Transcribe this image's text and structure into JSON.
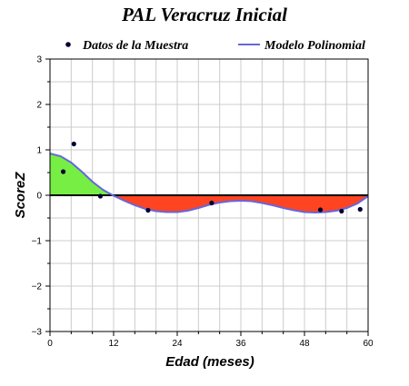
{
  "chart_data": {
    "type": "line",
    "title": "PAL Veracruz Inicial",
    "xlabel": "Edad (meses)",
    "ylabel": "ScoreZ",
    "xlim": [
      0,
      60
    ],
    "ylim": [
      -3,
      3
    ],
    "xticks": [
      0,
      12,
      24,
      36,
      48,
      60
    ],
    "yticks": [
      3,
      2,
      1,
      0,
      -1,
      -2,
      -3
    ],
    "xtick_labels": [
      "0",
      "12",
      "24",
      "36",
      "48",
      "60"
    ],
    "ytick_labels": [
      "3",
      "2",
      "1",
      "0",
      "−1",
      "−2",
      "−3"
    ],
    "grid": true,
    "legend_position": "top",
    "series": [
      {
        "name": "Datos de la Muestra",
        "kind": "scatter",
        "color": "#000033",
        "x": [
          2.5,
          4.5,
          9.5,
          18.5,
          30.5,
          51,
          55,
          58.5
        ],
        "y": [
          0.52,
          1.13,
          -0.02,
          -0.33,
          -0.17,
          -0.32,
          -0.35,
          -0.31
        ]
      },
      {
        "name": "Modelo Polinomial",
        "kind": "line",
        "color": "#6666dd",
        "x": [
          0,
          2,
          4,
          6,
          8,
          10,
          12,
          14,
          16,
          18,
          20,
          22,
          24,
          26,
          28,
          30,
          32,
          34,
          36,
          38,
          40,
          42,
          44,
          46,
          48,
          50,
          52,
          54,
          56,
          58,
          60
        ],
        "y": [
          0.92,
          0.86,
          0.72,
          0.52,
          0.3,
          0.12,
          -0.01,
          -0.12,
          -0.22,
          -0.3,
          -0.35,
          -0.37,
          -0.37,
          -0.34,
          -0.28,
          -0.21,
          -0.16,
          -0.13,
          -0.12,
          -0.13,
          -0.17,
          -0.22,
          -0.28,
          -0.33,
          -0.37,
          -0.38,
          -0.37,
          -0.34,
          -0.28,
          -0.18,
          -0.02
        ]
      }
    ],
    "fill_above_zero_color": "#77ee44",
    "fill_below_zero_color": "#ff4422"
  }
}
